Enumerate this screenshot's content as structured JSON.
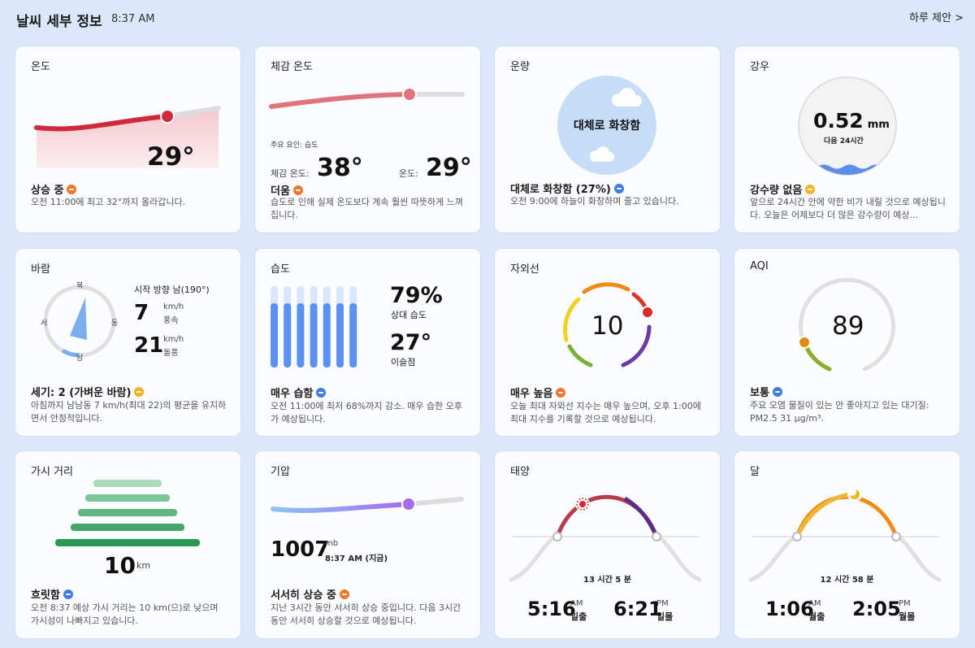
{
  "header": {
    "title": "날씨 세부 정보",
    "time": "8:37 AM",
    "link": "하루 제안 >"
  },
  "temperature": {
    "title": "온도",
    "value": "29°",
    "status": "상승 중",
    "desc": "오전 11:00에 최고 32°까지 올라갑니다.",
    "trend": "up"
  },
  "feels_like": {
    "title": "체감 온도",
    "factor": "주요 요인: 습도",
    "feels_label": "체감 온도:",
    "feels_value": "38°",
    "temp_label": "온도:",
    "temp_value": "29°",
    "status": "더움",
    "desc": "습도로 인해 실제 온도보다 계속 훨씬 따뜻하게 느껴집니다.",
    "trend": "up"
  },
  "cloud": {
    "title": "운량",
    "circle_label": "대체로 화창함",
    "status": "대체로 화창함 (27%)",
    "desc": "오전 9:00에 하늘이 화창하며 줄고 있습니다.",
    "trend": "down"
  },
  "rain": {
    "title": "강우",
    "amount": "0.52",
    "unit": "mm",
    "period": "다음 24시간",
    "status": "강수량 없음",
    "desc": "앞으로 24시간 안에 약한 비가 내릴 것으로 예상됩니다. 오늘은 어제보다 더 많은 강수량이 예상...",
    "trend": "flat"
  },
  "wind": {
    "title": "바람",
    "direction": "시작 방향 남(190°)",
    "compass": {
      "n": "북",
      "e": "동",
      "s": "남",
      "w": "서"
    },
    "speed": "7",
    "speed_unit": "km/h",
    "speed_label": "풍속",
    "gust": "21",
    "gust_unit": "km/h",
    "gust_label": "돌풍",
    "status": "세기: 2 (가벼운 바람)",
    "desc": "아침까지 남남동 7 km/h(최대 22)의 평균을 유지하면서 안정적입니다.",
    "trend": "flat"
  },
  "humidity": {
    "title": "습도",
    "value": "79%",
    "value_label": "상대 습도",
    "dew": "27°",
    "dew_label": "이슬점",
    "status": "매우 습함",
    "desc": "오전 11:00에 최저 68%까지 감소. 매우 습한 오후가 예상됩니다.",
    "trend": "down",
    "level": 0.79
  },
  "uv": {
    "title": "자외선",
    "value": "10",
    "status": "매우 높음",
    "desc": "오늘 최대 자외선 지수는 매우 높으며, 오후 1:00에 최대 지수를 기록할 것으로 예상됩니다.",
    "trend": "up"
  },
  "aqi": {
    "title": "AQI",
    "value": "89",
    "status": "보통",
    "desc": "주요 오염 물질이 있는 안 좋아지고 있는 대기질: PM2.5 31 μg/m³.",
    "trend": "down"
  },
  "visibility": {
    "title": "가시 거리",
    "value": "10",
    "unit": "km",
    "status": "흐릿함",
    "desc": "오전 8:37 예상 가시 거리는 10 km(으)로 낮으며 가시성이 나빠지고 있습니다.",
    "trend": "down"
  },
  "pressure": {
    "title": "기압",
    "value": "1007",
    "unit": "mb",
    "time": "8:37 AM (지금)",
    "status": "서서히 상승 중",
    "desc": "지난 3시간 동안 서서히 상승 중입니다. 다음 3시간 동안 서서히 상승할 것으로 예상됩니다.",
    "trend": "up"
  },
  "sun": {
    "title": "태양",
    "duration": "13 시간 5 분",
    "rise_time": "5:16",
    "rise_ampm": "AM",
    "rise_label": "일출",
    "set_time": "6:21",
    "set_ampm": "PM",
    "set_label": "일몰"
  },
  "moon": {
    "title": "달",
    "duration": "12 시간 58 분",
    "rise_time": "1:06",
    "rise_ampm": "AM",
    "rise_label": "월출",
    "set_time": "2:05",
    "set_ampm": "PM",
    "set_label": "월몰"
  },
  "colors": {
    "temp_line": "#d0293a",
    "feels_line": "#e0737b",
    "cloud_circle": "#c7dcf7",
    "rain_water": "#5a8ee8",
    "humidity_bar": "#5b92f1",
    "pressure_dot": "#a56bf1",
    "uv_marker": "#d8292d",
    "aqi_marker": "#e08a14",
    "sun_arc": "#b83a4e",
    "moon_arc": "#f08c14"
  }
}
